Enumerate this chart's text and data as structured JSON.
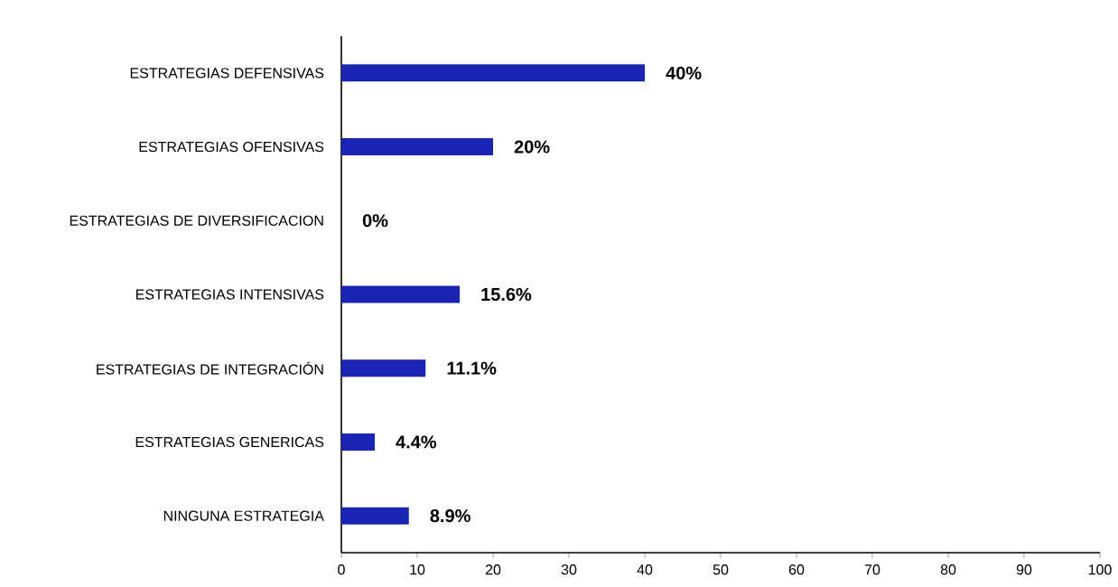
{
  "chart_data": {
    "type": "bar",
    "orientation": "horizontal",
    "categories": [
      "ESTRATEGIAS DEFENSIVAS",
      "ESTRATEGIAS OFENSIVAS",
      "ESTRATEGIAS DE DIVERSIFICACION",
      "ESTRATEGIAS INTENSIVAS",
      "ESTRATEGIAS DE INTEGRACIÓN",
      "ESTRATEGIAS GENERICAS",
      "NINGUNA ESTRATEGIA"
    ],
    "values": [
      40,
      20,
      0,
      15.6,
      11.1,
      4.4,
      8.9
    ],
    "value_labels": [
      "40%",
      "20%",
      "0%",
      "15.6%",
      "11.1%",
      "4.4%",
      "8.9%"
    ],
    "color": "#1a24b4",
    "xlim": [
      0,
      100
    ],
    "xticks": [
      0,
      10,
      20,
      30,
      40,
      50,
      60,
      70,
      80,
      90,
      100
    ]
  }
}
